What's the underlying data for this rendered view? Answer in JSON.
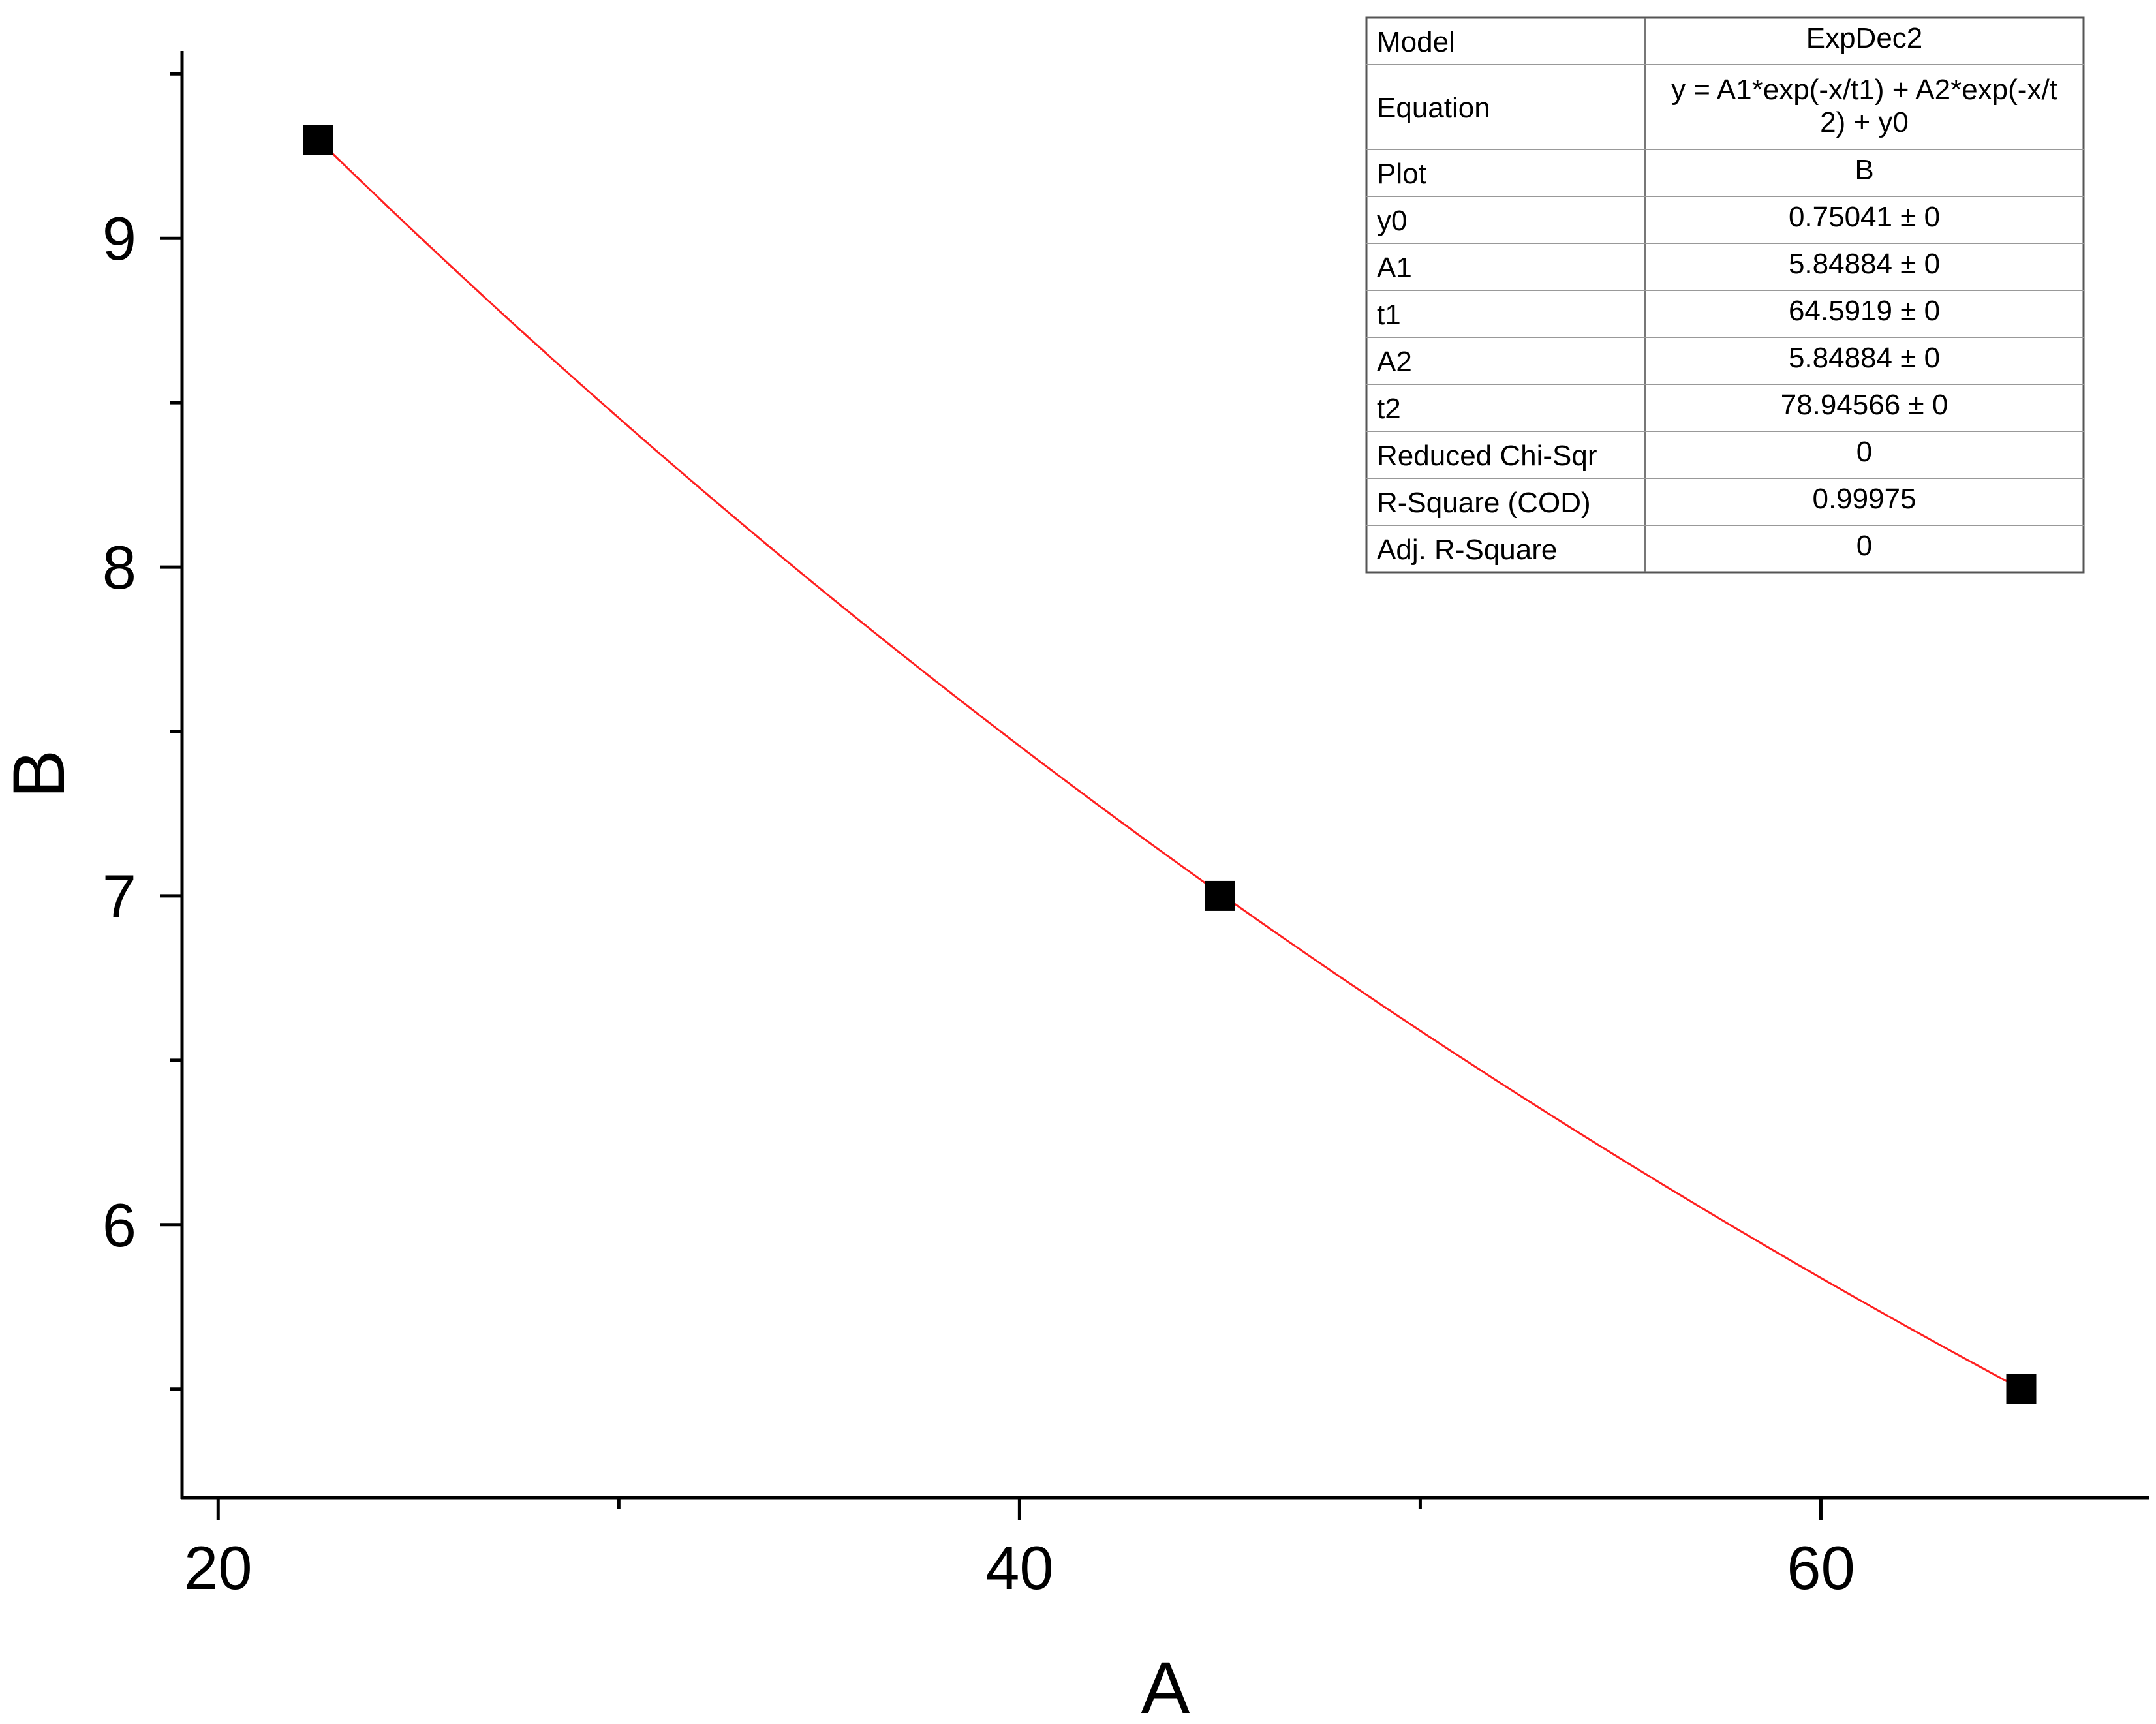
{
  "chart_data": {
    "type": "scatter",
    "title": "",
    "xlabel": "A",
    "ylabel": "B",
    "xlim": [
      19.1,
      68.2
    ],
    "ylim": [
      5.17,
      9.57
    ],
    "x_ticks": [
      20,
      40,
      60
    ],
    "x_tick_labels": [
      "20",
      "40",
      "60"
    ],
    "x_minor_ticks": [
      30,
      50
    ],
    "y_ticks": [
      6,
      7,
      8,
      9
    ],
    "y_tick_labels": [
      "6",
      "7",
      "8",
      "9"
    ],
    "y_minor_ticks": [
      5.5,
      6.5,
      7.5,
      8.5,
      9.5
    ],
    "grid": false,
    "points": [
      {
        "x": 22.5,
        "y": 9.3
      },
      {
        "x": 45,
        "y": 7.0
      },
      {
        "x": 65,
        "y": 5.5
      }
    ],
    "fit": {
      "color": "#ff2020",
      "x_range": [
        22.5,
        65
      ],
      "model": "ExpDec2",
      "params": {
        "y0": 0.75041,
        "A1": 5.84884,
        "t1": 64.5919,
        "A2": 5.84884,
        "t2": 78.94566
      }
    },
    "marker_color": "#000000",
    "fit_table": {
      "rows": [
        {
          "label": "Model",
          "value": "ExpDec2"
        },
        {
          "label": "Equation",
          "value": "y = A1*exp(-x/t1) + A2*exp(-x/t",
          "value2": "2) + y0"
        },
        {
          "label": "Plot",
          "value": "B"
        },
        {
          "label": "y0",
          "value": "0.75041 ± 0"
        },
        {
          "label": "A1",
          "value": "5.84884 ± 0"
        },
        {
          "label": "t1",
          "value": "64.5919 ± 0"
        },
        {
          "label": "A2",
          "value": "5.84884 ± 0"
        },
        {
          "label": "t2",
          "value": "78.94566 ± 0"
        },
        {
          "label": "Reduced Chi-Sqr",
          "value": "0"
        },
        {
          "label": "R-Square (COD)",
          "value": "0.99975"
        },
        {
          "label": "Adj. R-Square",
          "value": "0"
        }
      ]
    }
  }
}
